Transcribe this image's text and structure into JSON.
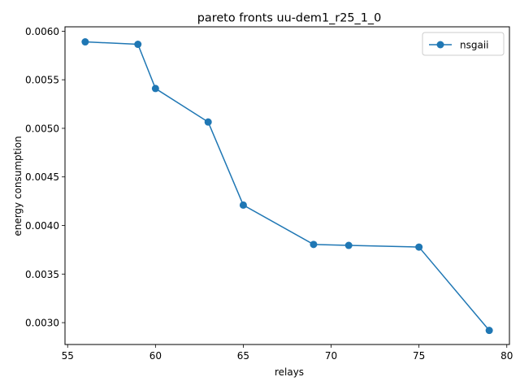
{
  "chart_data": {
    "type": "line",
    "title": "pareto fronts uu-dem1_r25_1_0",
    "xlabel": "relays",
    "ylabel": "energy consumption",
    "xlim": [
      54.85,
      80.15
    ],
    "ylim": [
      0.002775,
      0.006045
    ],
    "xticks": [
      55,
      60,
      65,
      70,
      75,
      80
    ],
    "xtick_labels": [
      "55",
      "60",
      "65",
      "70",
      "75",
      "80"
    ],
    "yticks": [
      0.003,
      0.0035,
      0.004,
      0.0045,
      0.005,
      0.0055,
      0.006
    ],
    "ytick_labels": [
      "0.0030",
      "0.0035",
      "0.0040",
      "0.0045",
      "0.0050",
      "0.0055",
      "0.0060"
    ],
    "grid": false,
    "legend_position": "top-right",
    "series": [
      {
        "name": "nsgaii",
        "color": "#1f77b4",
        "marker": "circle",
        "x": [
          56,
          59,
          60,
          63,
          65,
          69,
          71,
          75,
          79
        ],
        "y": [
          0.00589,
          0.005865,
          0.00541,
          0.005065,
          0.00421,
          0.003805,
          0.003795,
          0.003778,
          0.00292
        ]
      }
    ]
  }
}
